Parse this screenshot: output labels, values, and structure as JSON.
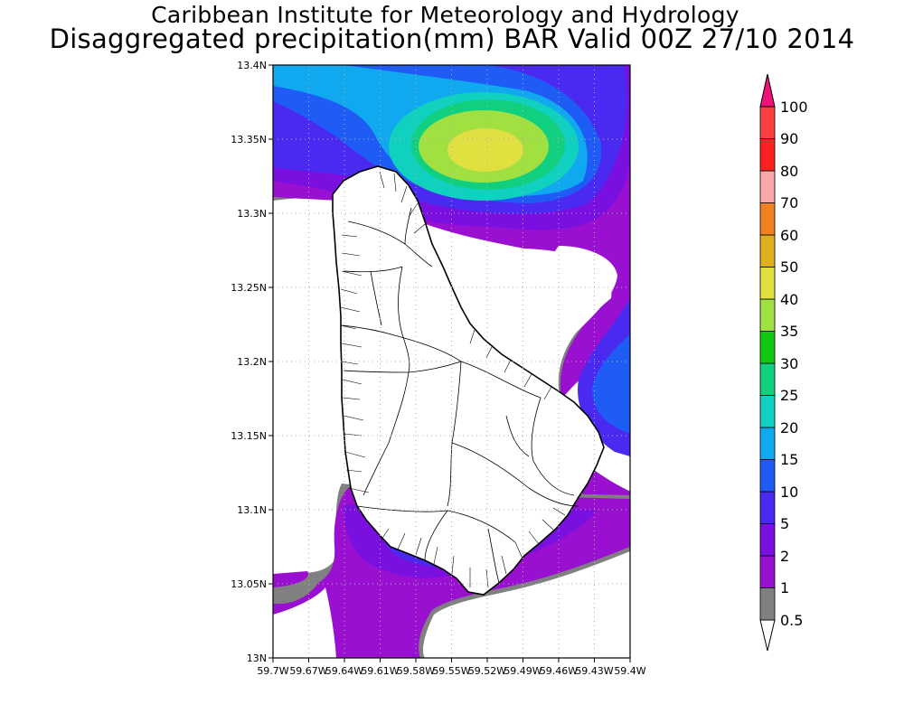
{
  "title": {
    "line1": "Caribbean Institute for Meteorology and Hydrology",
    "line2": "Disaggregated precipitation(mm) BAR Valid 00Z 27/10 2014"
  },
  "axes": {
    "lat_labels": [
      "13.4N",
      "13.35N",
      "13.3N",
      "13.25N",
      "13.2N",
      "13.15N",
      "13.1N",
      "13.05N",
      "13N"
    ],
    "lon_labels": [
      "59.7W",
      "59.67W",
      "59.64W",
      "59.61W",
      "59.58W",
      "59.55W",
      "59.52W",
      "59.49W",
      "59.46W",
      "59.43W",
      "59.4W"
    ]
  },
  "colorbar": {
    "levels": [
      {
        "label": "0.5",
        "color": "#ffffff"
      },
      {
        "label": "1",
        "color": "#808080"
      },
      {
        "label": "2",
        "color": "#9a10d0"
      },
      {
        "label": "5",
        "color": "#7a10e0"
      },
      {
        "label": "10",
        "color": "#4a2af0"
      },
      {
        "label": "15",
        "color": "#1f5cf5"
      },
      {
        "label": "20",
        "color": "#10a8ee"
      },
      {
        "label": "25",
        "color": "#10d0c0"
      },
      {
        "label": "30",
        "color": "#10d080"
      },
      {
        "label": "35",
        "color": "#10c810"
      },
      {
        "label": "40",
        "color": "#a0e040"
      },
      {
        "label": "50",
        "color": "#e0e040"
      },
      {
        "label": "60",
        "color": "#e0b020"
      },
      {
        "label": "70",
        "color": "#f08020"
      },
      {
        "label": "80",
        "color": "#f8a8a8"
      },
      {
        "label": "90",
        "color": "#ff2020"
      },
      {
        "label": "100",
        "color": "#ff4040"
      },
      {
        "label": "",
        "color": "#f0107a"
      }
    ]
  }
}
